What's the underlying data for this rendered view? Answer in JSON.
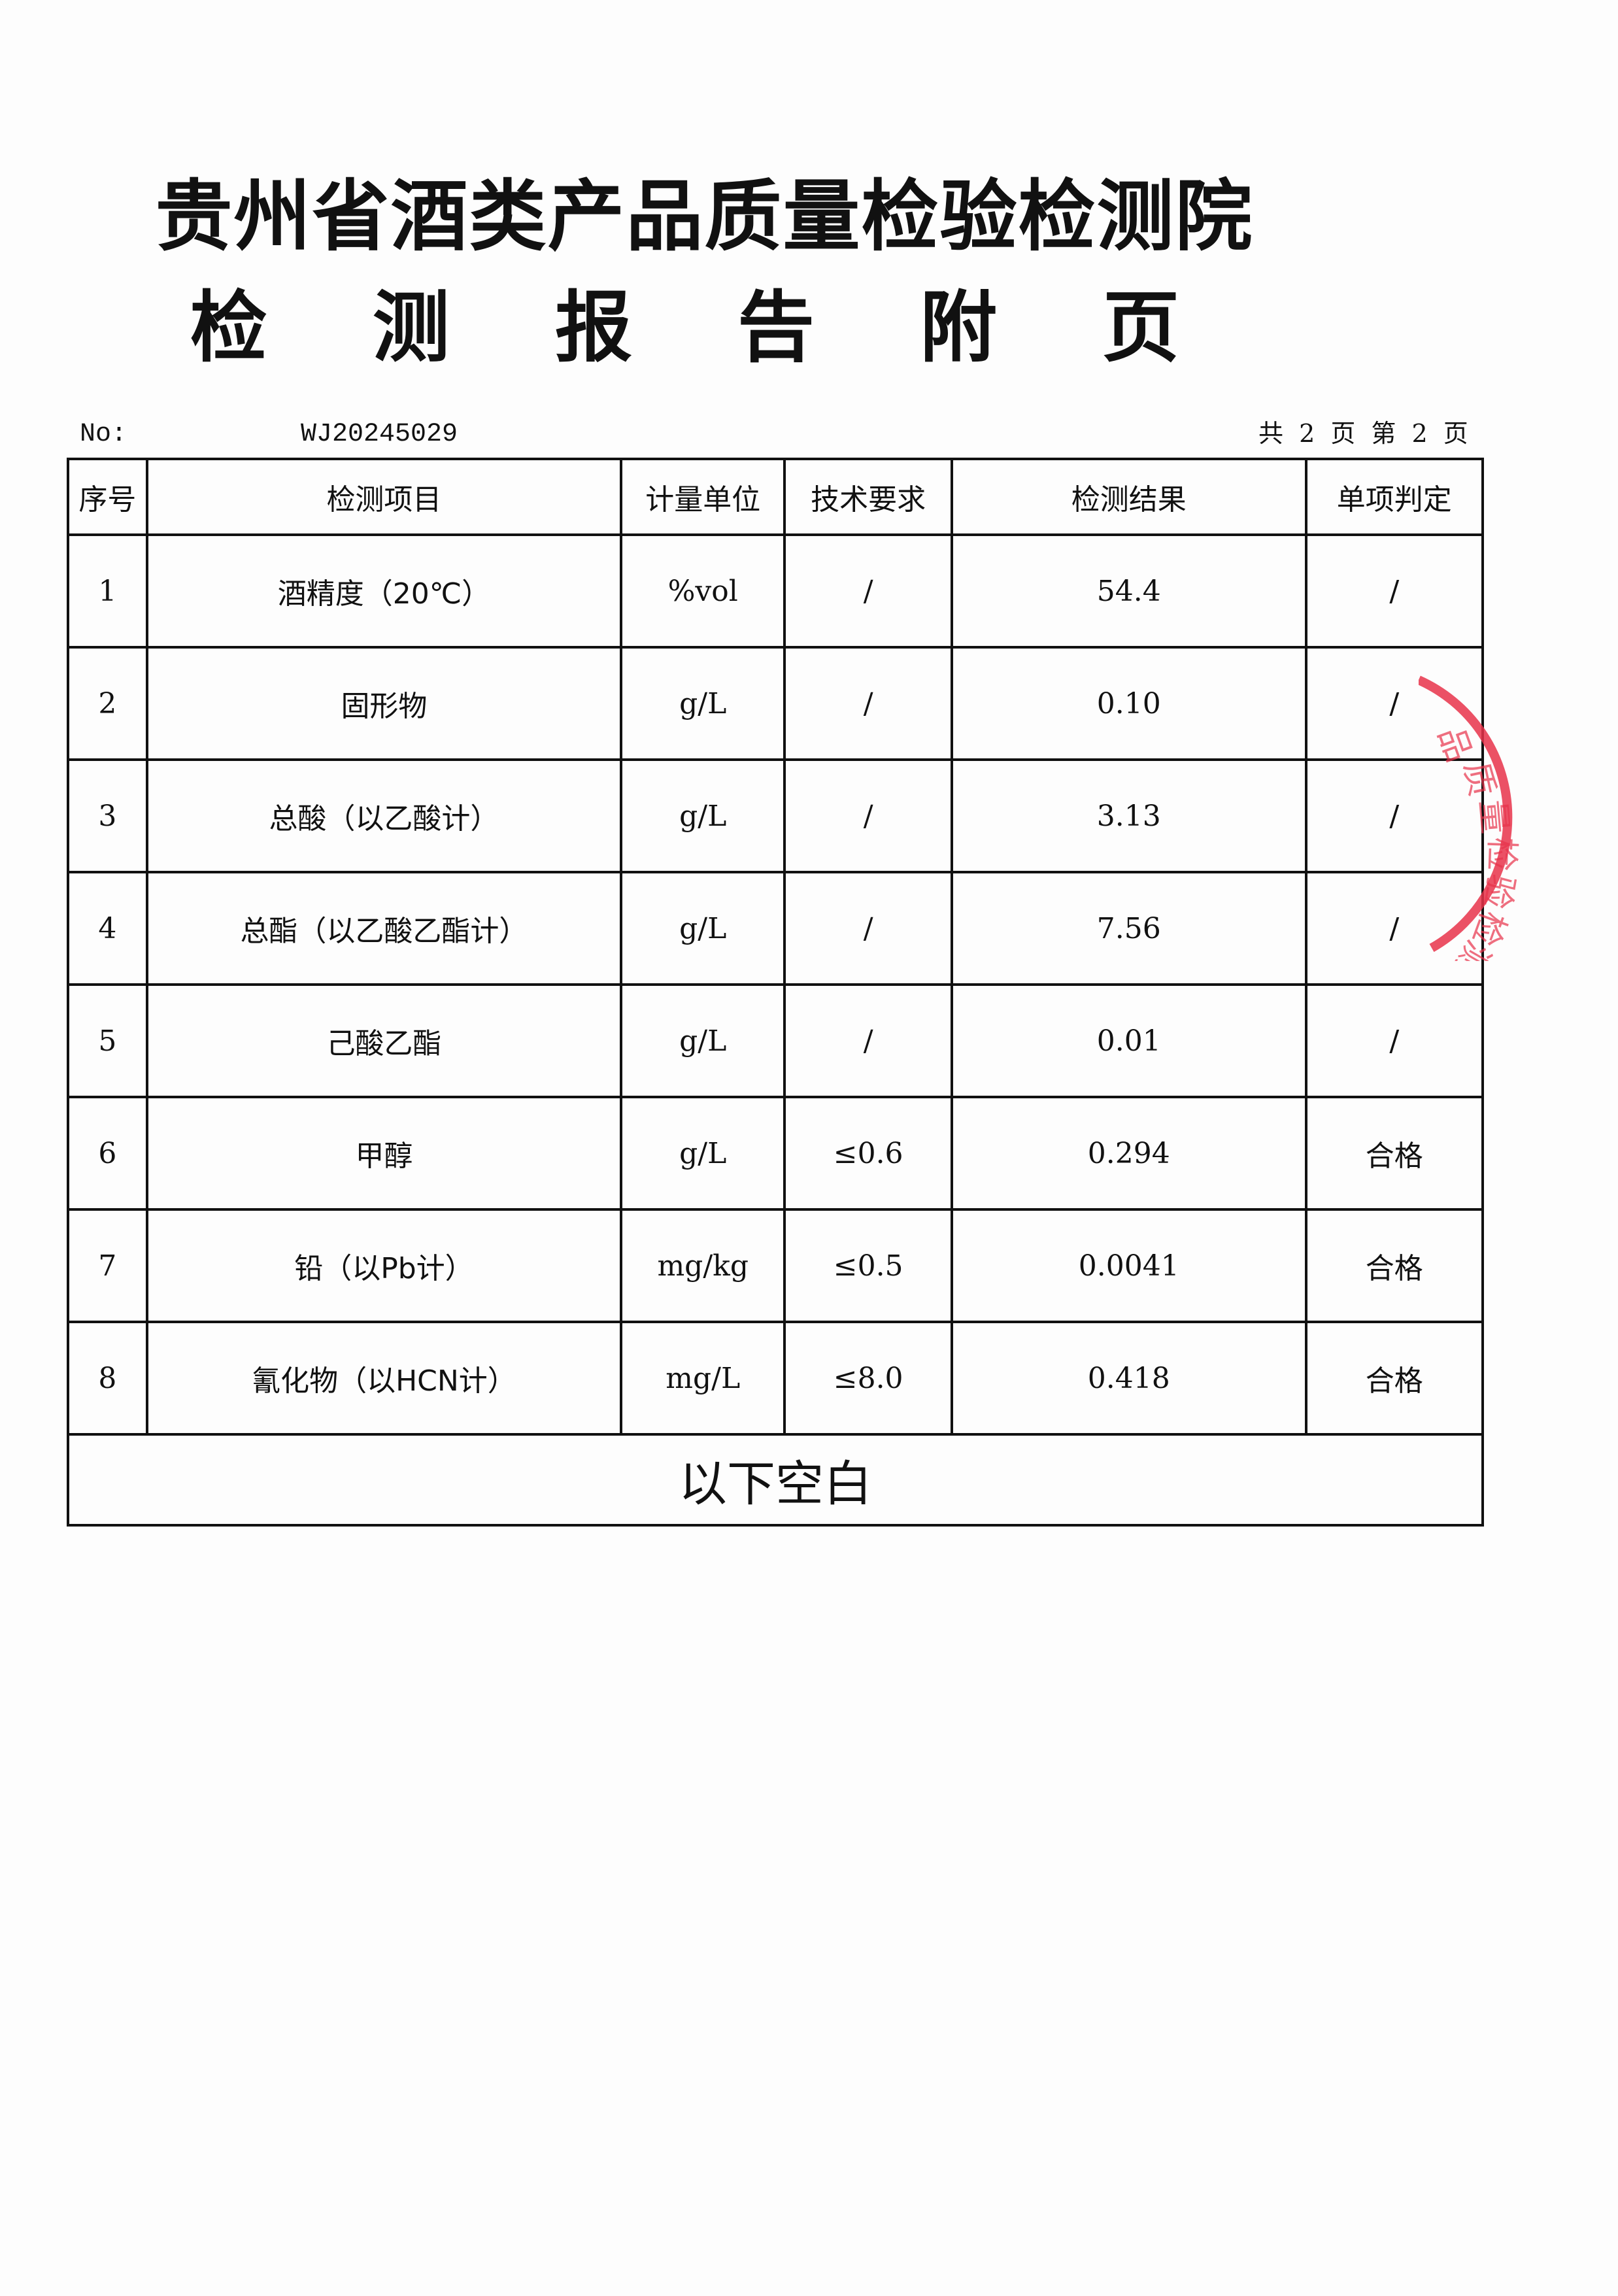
{
  "header": {
    "institution": "贵州省酒类产品质量检验检测院",
    "subtitle": "检 测 报 告 附 页",
    "no_label": "No:",
    "no_value": "WJ20245029",
    "page_info": "共 2 页 第 2 页"
  },
  "table": {
    "columns": [
      "序号",
      "检测项目",
      "计量单位",
      "技术要求",
      "检测结果",
      "单项判定"
    ],
    "rows": [
      [
        "1",
        "酒精度（20℃）",
        "%vol",
        "/",
        "54.4",
        "/"
      ],
      [
        "2",
        "固形物",
        "g/L",
        "/",
        "0.10",
        "/"
      ],
      [
        "3",
        "总酸（以乙酸计）",
        "g/L",
        "/",
        "3.13",
        "/"
      ],
      [
        "4",
        "总酯（以乙酸乙酯计）",
        "g/L",
        "/",
        "7.56",
        "/"
      ],
      [
        "5",
        "己酸乙酯",
        "g/L",
        "/",
        "0.01",
        "/"
      ],
      [
        "6",
        "甲醇",
        "g/L",
        "≤0.6",
        "0.294",
        "合格"
      ],
      [
        "7",
        "铅（以Pb计）",
        "mg/kg",
        "≤0.5",
        "0.0041",
        "合格"
      ],
      [
        "8",
        "氰化物（以HCN计）",
        "mg/L",
        "≤8.0",
        "0.418",
        "合格"
      ]
    ],
    "footer": "以下空白"
  },
  "stamp": {
    "text": "品质量检验检测院",
    "color": "#e8334a"
  }
}
